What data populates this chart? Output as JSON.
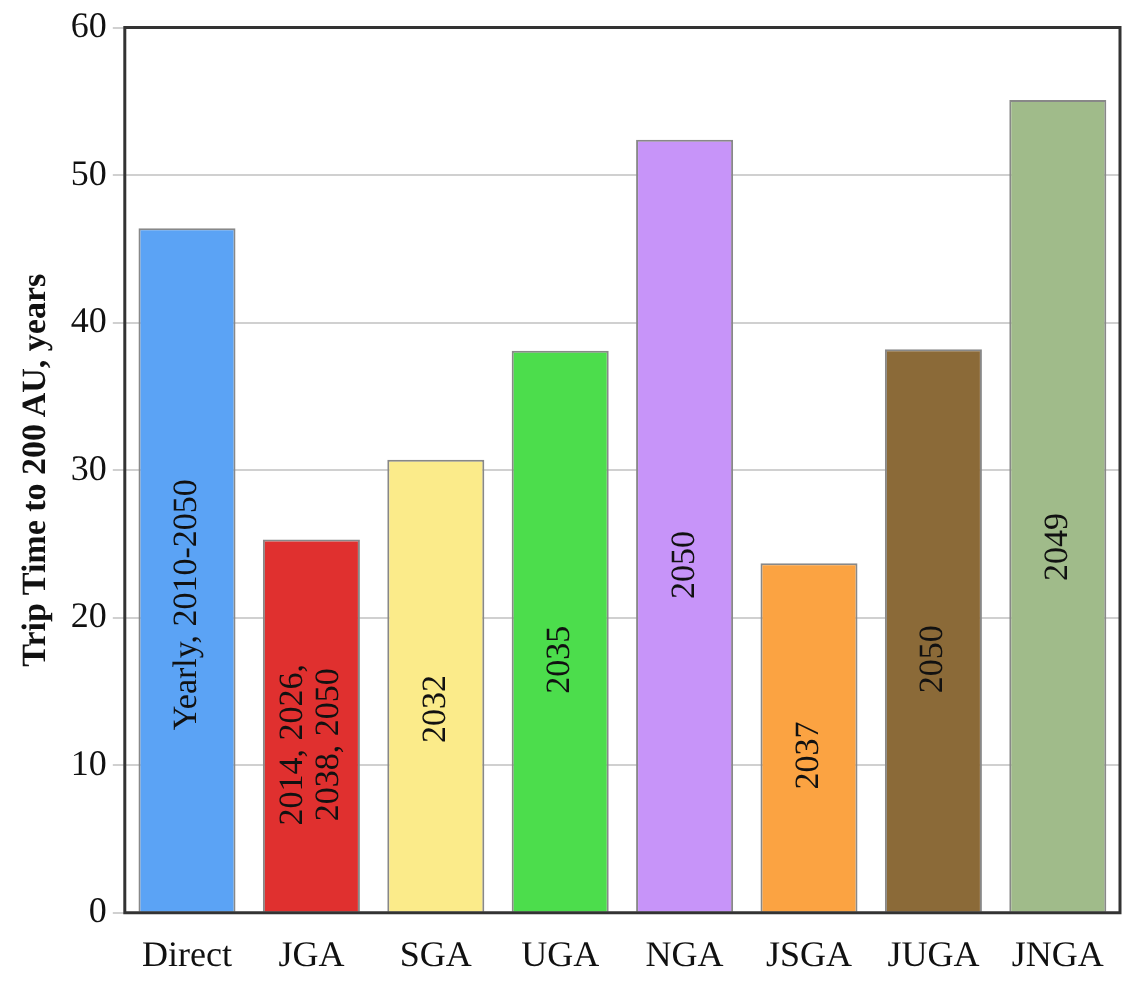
{
  "chart_data": {
    "type": "bar",
    "ylabel": "Trip Time to 200 AU, years",
    "categories": [
      "Direct",
      "JGA",
      "SGA",
      "UGA",
      "NGA",
      "JSGA",
      "JUGA",
      "JNGA"
    ],
    "values": [
      46.4,
      25.3,
      30.7,
      38.1,
      52.4,
      23.7,
      38.2,
      55.1
    ],
    "colors": [
      "#5ba3f5",
      "#e0302f",
      "#fbeb8a",
      "#4cdd4c",
      "#c794f9",
      "#fba342",
      "#8b6a38",
      "#a0bb8a"
    ],
    "ylim": [
      0,
      60
    ],
    "yticks": [
      0,
      10,
      20,
      30,
      40,
      50,
      60
    ],
    "grid": "y",
    "legend": false,
    "annotations": [
      "Yearly, 2010-2050",
      "2014, 2026,\n2038, 2050",
      "2032",
      "2035",
      "2050",
      "2037",
      "2050",
      "2049"
    ]
  }
}
